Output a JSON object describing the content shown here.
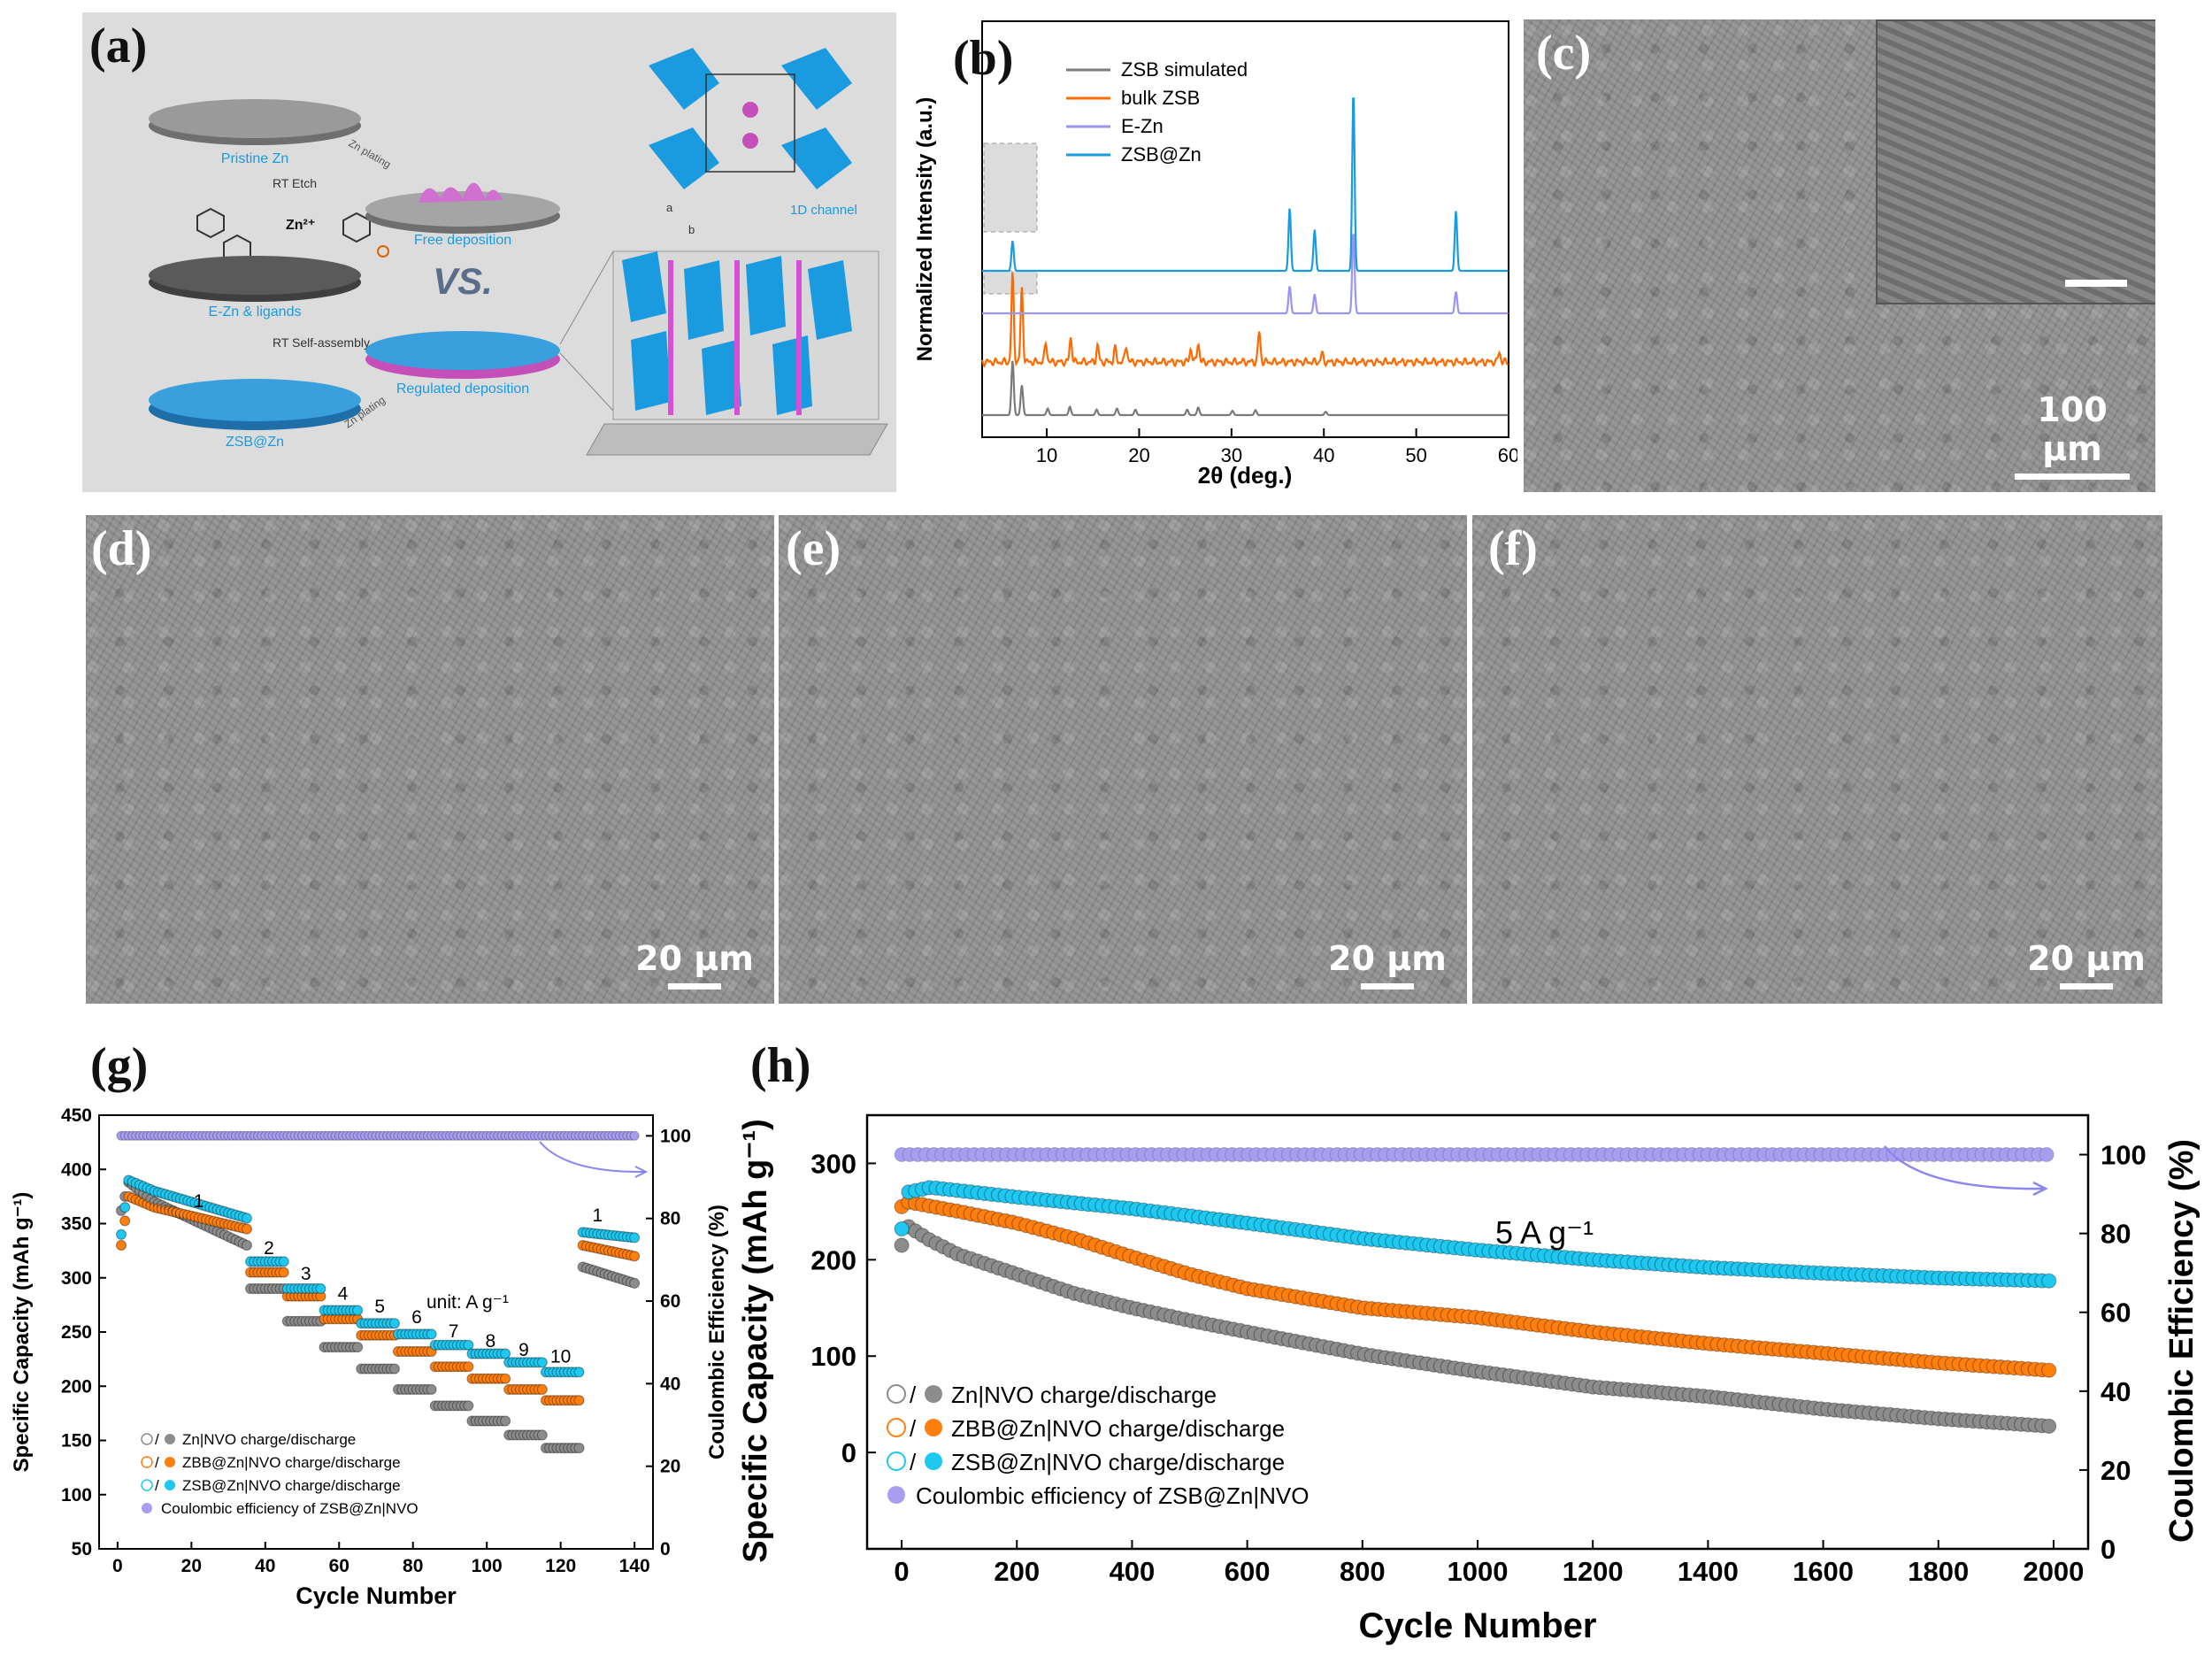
{
  "panels": {
    "a": {
      "label": "(a)",
      "texts": {
        "pristine": "Pristine Zn",
        "etch": "RT  Etch",
        "zn2": "Zn²⁺",
        "ezn": "E-Zn & ligands",
        "selfassembly": "RT  Self-assembly",
        "zsbzn": "ZSB@Zn",
        "zn_plating_1": "Zn plating",
        "zn_plating_2": "Zn plating",
        "free": "Free deposition",
        "vs": "VS.",
        "regulated": "Regulated deposition",
        "channel": "1D channel",
        "axis_a": "a",
        "axis_b": "b"
      }
    },
    "b": {
      "label": "(b)"
    },
    "c": {
      "label": "(c)",
      "scale": "100 μm"
    },
    "d": {
      "label": "(d)",
      "scale": "20 μm"
    },
    "e": {
      "label": "(e)",
      "scale": "20 μm"
    },
    "f": {
      "label": "(f)",
      "scale": "20 μm"
    },
    "g": {
      "label": "(g)",
      "unit_note": "unit: A g⁻¹"
    },
    "h": {
      "label": "(h)",
      "rate_note": "5 A g⁻¹"
    }
  },
  "colors": {
    "gray": "#8c8c8c",
    "orange": "#ff7f0e",
    "cyan": "#1ec8f0",
    "purple": "#9a95f0",
    "blue": "#1a9be0",
    "lavender": "#a89ef0",
    "xrd_orange": "#ff6a00",
    "xrd_gray": "#7a7a7a"
  },
  "chart_data": [
    {
      "id": "b",
      "type": "line",
      "title": "",
      "xlabel": "2θ (deg.)",
      "ylabel": "Normalized Intensity (a.u.)",
      "xlim": [
        3,
        60
      ],
      "xticks": [
        10,
        20,
        30,
        40,
        50,
        60
      ],
      "legend": [
        "ZSB simulated",
        "bulk ZSB",
        "E-Zn",
        "ZSB@Zn"
      ],
      "series": [
        {
          "name": "ZSB simulated",
          "offset": 0,
          "peaks": [
            [
              6.3,
              1.0
            ],
            [
              7.3,
              0.55
            ],
            [
              10.1,
              0.12
            ],
            [
              12.5,
              0.15
            ],
            [
              15.4,
              0.1
            ],
            [
              17.6,
              0.12
            ],
            [
              19.6,
              0.1
            ],
            [
              25.2,
              0.1
            ],
            [
              26.4,
              0.14
            ],
            [
              30.1,
              0.08
            ],
            [
              32.6,
              0.09
            ],
            [
              40.2,
              0.06
            ]
          ]
        },
        {
          "name": "bulk ZSB",
          "offset": 1,
          "peaks": [
            [
              6.3,
              1.6
            ],
            [
              7.3,
              1.35
            ],
            [
              9.9,
              0.35
            ],
            [
              12.6,
              0.45
            ],
            [
              15.5,
              0.3
            ],
            [
              17.4,
              0.25
            ],
            [
              18.6,
              0.3
            ],
            [
              25.6,
              0.25
            ],
            [
              26.4,
              0.35
            ],
            [
              33.0,
              0.55
            ],
            [
              39.8,
              0.15
            ],
            [
              59.0,
              0.18
            ]
          ]
        },
        {
          "name": "E-Zn",
          "offset": 2,
          "peaks": [
            [
              36.3,
              0.5
            ],
            [
              39.0,
              0.35
            ],
            [
              43.2,
              1.5
            ],
            [
              54.3,
              0.4
            ]
          ]
        },
        {
          "name": "ZSB@Zn",
          "offset": 3,
          "peaks": [
            [
              6.3,
              0.55
            ],
            [
              36.3,
              1.15
            ],
            [
              39.0,
              0.75
            ],
            [
              43.2,
              3.3
            ],
            [
              54.3,
              1.1
            ]
          ]
        }
      ]
    },
    {
      "id": "g",
      "type": "scatter",
      "xlabel": "Cycle Number",
      "ylabel": "Specific Capacity (mAh g⁻¹)",
      "y2label": "Coulombic Efficiency (%)",
      "xlim": [
        -5,
        145
      ],
      "ylim": [
        50,
        450
      ],
      "y2lim": [
        0,
        105
      ],
      "xticks": [
        0,
        20,
        40,
        60,
        80,
        100,
        120,
        140
      ],
      "yticks": [
        50,
        100,
        150,
        200,
        250,
        300,
        350,
        400,
        450
      ],
      "y2ticks": [
        0,
        20,
        40,
        60,
        80,
        100
      ],
      "rate_labels": [
        {
          "text": "1",
          "x": 22,
          "y": 365
        },
        {
          "text": "2",
          "x": 41,
          "y": 322
        },
        {
          "text": "3",
          "x": 51,
          "y": 298
        },
        {
          "text": "4",
          "x": 61,
          "y": 280
        },
        {
          "text": "5",
          "x": 71,
          "y": 268
        },
        {
          "text": "6",
          "x": 81,
          "y": 258
        },
        {
          "text": "7",
          "x": 91,
          "y": 245
        },
        {
          "text": "8",
          "x": 101,
          "y": 236
        },
        {
          "text": "9",
          "x": 110,
          "y": 228
        },
        {
          "text": "10",
          "x": 120,
          "y": 222
        },
        {
          "text": "1",
          "x": 130,
          "y": 352
        }
      ],
      "steps": [
        {
          "x0": 1,
          "x1": 35,
          "zn": [
            [
              1,
              362
            ],
            [
              3,
              388
            ],
            [
              10,
              370
            ],
            [
              35,
              330
            ]
          ],
          "zbb": [
            [
              1,
              330
            ],
            [
              3,
              375
            ],
            [
              10,
              365
            ],
            [
              35,
              345
            ]
          ],
          "zsb": [
            [
              1,
              340
            ],
            [
              3,
              390
            ],
            [
              10,
              380
            ],
            [
              35,
              355
            ]
          ]
        },
        {
          "x0": 36,
          "x1": 45,
          "zn": 290,
          "zbb": 305,
          "zsb": 315
        },
        {
          "x0": 46,
          "x1": 55,
          "zn": 260,
          "zbb": 283,
          "zsb": 290
        },
        {
          "x0": 56,
          "x1": 65,
          "zn": 236,
          "zbb": 262,
          "zsb": 270
        },
        {
          "x0": 66,
          "x1": 75,
          "zn": 216,
          "zbb": 247,
          "zsb": 258
        },
        {
          "x0": 76,
          "x1": 85,
          "zn": 197,
          "zbb": 232,
          "zsb": 248
        },
        {
          "x0": 86,
          "x1": 95,
          "zn": 182,
          "zbb": 218,
          "zsb": 238
        },
        {
          "x0": 96,
          "x1": 105,
          "zn": 168,
          "zbb": 207,
          "zsb": 230
        },
        {
          "x0": 106,
          "x1": 115,
          "zn": 155,
          "zbb": 197,
          "zsb": 222
        },
        {
          "x0": 116,
          "x1": 125,
          "zn": 143,
          "zbb": 187,
          "zsb": 213
        },
        {
          "x0": 126,
          "x1": 140,
          "zn": [
            [
              126,
              310
            ],
            [
              140,
              295
            ]
          ],
          "zbb": [
            [
              126,
              330
            ],
            [
              140,
              320
            ]
          ],
          "zsb": [
            [
              126,
              342
            ],
            [
              140,
              337
            ]
          ]
        }
      ],
      "ce": 100,
      "legend": [
        "Zn|NVO charge/discharge",
        "ZBB@Zn|NVO charge/discharge",
        "ZSB@Zn|NVO charge/discharge",
        "Coulombic efficiency of ZSB@Zn|NVO"
      ],
      "legend_slash": "/"
    },
    {
      "id": "h",
      "type": "scatter",
      "xlabel": "Cycle Number",
      "ylabel": "Specific Capacity (mAh g⁻¹)",
      "y2label": "Coulombic Efficiency (%)",
      "xlim": [
        -60,
        2060
      ],
      "ylim": [
        -100,
        350
      ],
      "y2lim": [
        0,
        110
      ],
      "xticks": [
        0,
        200,
        400,
        600,
        800,
        1000,
        1200,
        1400,
        1600,
        1800,
        2000
      ],
      "yticks": [
        0,
        100,
        200,
        300
      ],
      "y2ticks": [
        0,
        20,
        40,
        60,
        80,
        100
      ],
      "series": [
        {
          "name": "Zn|NVO",
          "points": [
            [
              0,
              215
            ],
            [
              10,
              235
            ],
            [
              50,
              220
            ],
            [
              100,
              205
            ],
            [
              200,
              185
            ],
            [
              300,
              165
            ],
            [
              400,
              150
            ],
            [
              500,
              137
            ],
            [
              600,
              125
            ],
            [
              800,
              102
            ],
            [
              1000,
              84
            ],
            [
              1200,
              68
            ],
            [
              1400,
              58
            ],
            [
              1600,
              45
            ],
            [
              1800,
              35
            ],
            [
              2000,
              27
            ]
          ]
        },
        {
          "name": "ZBB@Zn|NVO",
          "points": [
            [
              0,
              255
            ],
            [
              10,
              260
            ],
            [
              100,
              250
            ],
            [
              200,
              238
            ],
            [
              300,
              222
            ],
            [
              400,
              203
            ],
            [
              500,
              185
            ],
            [
              600,
              170
            ],
            [
              800,
              150
            ],
            [
              1000,
              140
            ],
            [
              1200,
              125
            ],
            [
              1400,
              113
            ],
            [
              1600,
              103
            ],
            [
              1800,
              93
            ],
            [
              2000,
              85
            ]
          ]
        },
        {
          "name": "ZSB@Zn|NVO",
          "points": [
            [
              0,
              232
            ],
            [
              10,
              270
            ],
            [
              50,
              275
            ],
            [
              200,
              265
            ],
            [
              400,
              253
            ],
            [
              600,
              238
            ],
            [
              800,
              222
            ],
            [
              1000,
              210
            ],
            [
              1200,
              200
            ],
            [
              1400,
              192
            ],
            [
              1600,
              186
            ],
            [
              1800,
              181
            ],
            [
              2000,
              178
            ]
          ]
        }
      ],
      "ce": 100,
      "legend": [
        "Zn|NVO charge/discharge",
        "ZBB@Zn|NVO charge/discharge",
        "ZSB@Zn|NVO charge/discharge",
        "Coulombic efficiency of ZSB@Zn|NVO"
      ],
      "legend_slash": "/"
    }
  ]
}
